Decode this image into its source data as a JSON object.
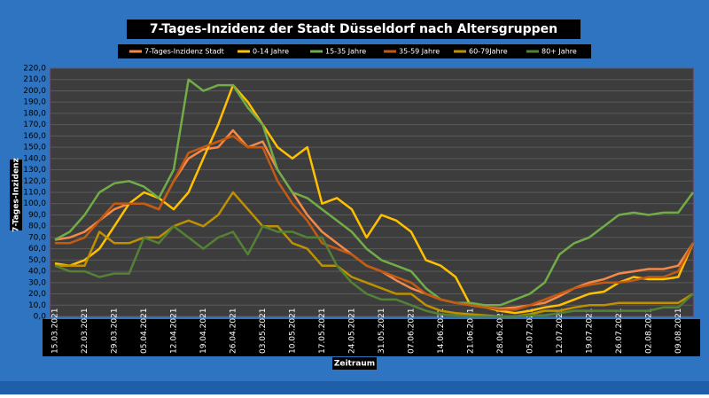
{
  "chart_data": {
    "type": "line",
    "title": "7-Tages-Inzidenz der Stadt Düsseldorf nach Altersgruppen",
    "y_label": "7-Tages-Inzidenz",
    "x_label": "Zeitraum",
    "categories": [
      "15.03.2021",
      null,
      "22.03.2021",
      null,
      "29.03.2021",
      null,
      "05.04.2021",
      null,
      "12.04.2021",
      null,
      "19.04.2021",
      null,
      "26.04.2021",
      null,
      "03.05.2021",
      null,
      "10.05.2021",
      null,
      "17.05.2021",
      null,
      "24.05.2021",
      null,
      "31.05.2021",
      null,
      "07.06.2021",
      null,
      "14.06.2021",
      null,
      "21.06.2021",
      null,
      "28.06.2021",
      null,
      "05.07.2021",
      null,
      "12.07.2021",
      null,
      "19.07.2021",
      null,
      "26.07.2021",
      null,
      "02.08.2021",
      null,
      "09.08.2021",
      null
    ],
    "series": [
      {
        "name": "7-Tages-Inzidenz Stadt",
        "color": "#f4894a",
        "values": [
          68,
          70,
          75,
          85,
          95,
          100,
          100,
          95,
          120,
          140,
          148,
          150,
          165,
          150,
          155,
          130,
          110,
          90,
          75,
          65,
          55,
          45,
          40,
          32,
          25,
          20,
          15,
          12,
          10,
          8,
          7,
          8,
          10,
          12,
          18,
          25,
          30,
          33,
          38,
          40,
          42,
          42,
          45,
          65
        ]
      },
      {
        "name": "0-14 Jahre",
        "color": "#ffc000",
        "values": [
          47,
          45,
          50,
          60,
          80,
          100,
          110,
          105,
          95,
          110,
          140,
          170,
          205,
          190,
          170,
          150,
          140,
          150,
          100,
          105,
          95,
          70,
          90,
          85,
          75,
          50,
          45,
          35,
          10,
          8,
          5,
          3,
          5,
          8,
          10,
          15,
          20,
          22,
          30,
          35,
          33,
          33,
          35,
          65
        ]
      },
      {
        "name": "15-35 Jahre",
        "color": "#70ad47",
        "values": [
          68,
          75,
          90,
          110,
          118,
          120,
          115,
          105,
          130,
          210,
          200,
          205,
          205,
          185,
          170,
          130,
          110,
          105,
          95,
          85,
          75,
          60,
          50,
          45,
          40,
          25,
          15,
          12,
          12,
          10,
          10,
          15,
          20,
          30,
          55,
          65,
          70,
          80,
          90,
          92,
          90,
          92,
          92,
          110
        ]
      },
      {
        "name": "35-59 Jahre",
        "color": "#c55a11",
        "values": [
          65,
          65,
          70,
          85,
          100,
          100,
          100,
          95,
          120,
          145,
          150,
          155,
          160,
          150,
          150,
          120,
          100,
          85,
          65,
          60,
          55,
          45,
          40,
          35,
          30,
          20,
          15,
          12,
          10,
          8,
          6,
          6,
          10,
          15,
          20,
          25,
          28,
          30,
          30,
          32,
          35,
          35,
          40,
          65
        ]
      },
      {
        "name": "60-79Jahre",
        "color": "#bf9000",
        "values": [
          45,
          45,
          45,
          75,
          65,
          65,
          70,
          70,
          80,
          85,
          80,
          90,
          110,
          95,
          80,
          80,
          65,
          60,
          45,
          45,
          35,
          30,
          25,
          20,
          20,
          10,
          5,
          3,
          2,
          1,
          0,
          0,
          2,
          5,
          5,
          8,
          10,
          10,
          12,
          12,
          12,
          12,
          12,
          20
        ]
      },
      {
        "name": "80+ Jahre",
        "color": "#548235",
        "values": [
          45,
          40,
          40,
          35,
          38,
          38,
          70,
          65,
          80,
          70,
          60,
          70,
          75,
          55,
          80,
          75,
          75,
          70,
          70,
          45,
          30,
          20,
          15,
          15,
          10,
          5,
          2,
          1,
          0,
          0,
          0,
          0,
          1,
          1,
          3,
          5,
          5,
          5,
          5,
          5,
          5,
          8,
          8,
          20
        ]
      }
    ],
    "ylim": [
      0,
      220
    ],
    "yticks": [
      {
        "value": 0,
        "label": "0,0"
      },
      {
        "value": 10,
        "label": "10,0"
      },
      {
        "value": 20,
        "label": "20,0"
      },
      {
        "value": 30,
        "label": "30,0"
      },
      {
        "value": 40,
        "label": "40,0"
      },
      {
        "value": 50,
        "label": "50,0"
      },
      {
        "value": 60,
        "label": "60,0"
      },
      {
        "value": 70,
        "label": "70,0"
      },
      {
        "value": 80,
        "label": "80,0"
      },
      {
        "value": 90,
        "label": "90,0"
      },
      {
        "value": 100,
        "label": "100,0"
      },
      {
        "value": 110,
        "label": "110,0"
      },
      {
        "value": 120,
        "label": "120,0"
      },
      {
        "value": 130,
        "label": "130,0"
      },
      {
        "value": 140,
        "label": "140,0"
      },
      {
        "value": 150,
        "label": "150,0"
      },
      {
        "value": 160,
        "label": "160,0"
      },
      {
        "value": 170,
        "label": "170,0"
      },
      {
        "value": 180,
        "label": "180,0"
      },
      {
        "value": 190,
        "label": "190,0"
      },
      {
        "value": 200,
        "label": "200,0"
      },
      {
        "value": 210,
        "label": "210,0"
      },
      {
        "value": 220,
        "label": "220,0"
      }
    ],
    "grid": true
  }
}
